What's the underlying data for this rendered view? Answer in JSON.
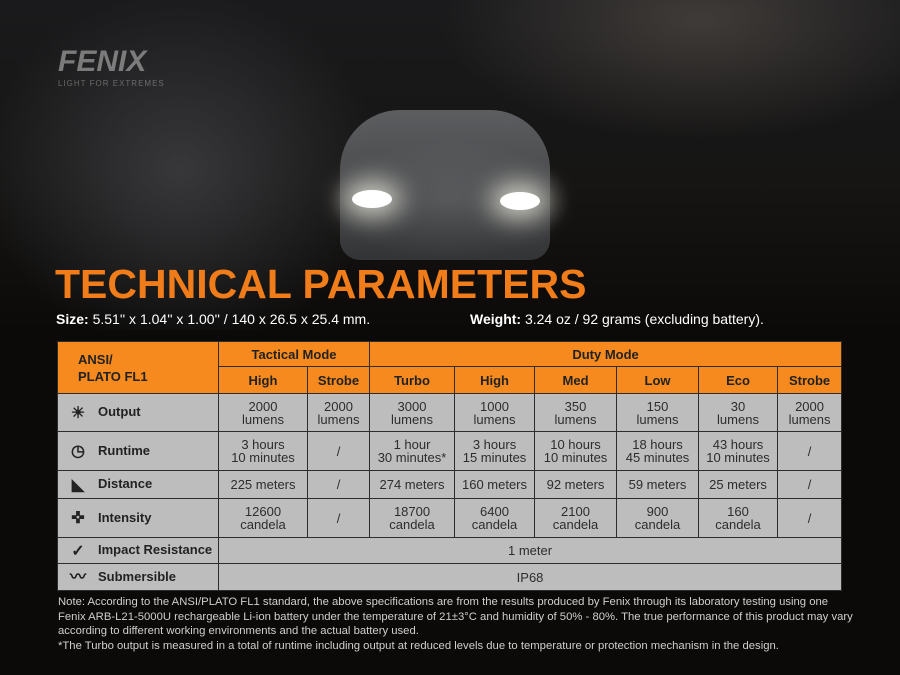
{
  "brand": {
    "logo": "FENIX",
    "tagline": "LIGHT FOR EXTREMES"
  },
  "title": "TECHNICAL PARAMETERS",
  "size": {
    "label": "Size:",
    "value": "5.51'' x 1.04'' x 1.00'' / 140 x 26.5 x 25.4 mm."
  },
  "weight": {
    "label": "Weight:",
    "value": "3.24 oz / 92 grams (excluding battery)."
  },
  "table": {
    "corner": [
      "ANSI/",
      "PLATO  FL1"
    ],
    "groups": [
      "Tactical Mode",
      "Duty Mode"
    ],
    "modes": [
      "High",
      "Strobe",
      "Turbo",
      "High",
      "Med",
      "Low",
      "Eco",
      "Strobe"
    ],
    "rows": [
      {
        "label": "Output",
        "icon": "output-icon",
        "cells": [
          [
            "2000",
            "lumens"
          ],
          [
            "2000",
            "lumens"
          ],
          [
            "3000",
            "lumens"
          ],
          [
            "1000",
            "lumens"
          ],
          [
            "350",
            "lumens"
          ],
          [
            "150",
            "lumens"
          ],
          [
            "30",
            "lumens"
          ],
          [
            "2000",
            "lumens"
          ]
        ]
      },
      {
        "label": "Runtime",
        "icon": "clock-icon",
        "cells": [
          [
            "3 hours",
            "10 minutes"
          ],
          [
            "/"
          ],
          [
            "1 hour",
            "30 minutes*"
          ],
          [
            "3 hours",
            "15 minutes"
          ],
          [
            "10 hours",
            "10 minutes"
          ],
          [
            "18 hours",
            "45 minutes"
          ],
          [
            "43 hours",
            "10 minutes"
          ],
          [
            "/"
          ]
        ]
      },
      {
        "label": "Distance",
        "icon": "distance-icon",
        "cells": [
          [
            "225 meters"
          ],
          [
            "/"
          ],
          [
            "274 meters"
          ],
          [
            "160 meters"
          ],
          [
            "92 meters"
          ],
          [
            "59 meters"
          ],
          [
            "25 meters"
          ],
          [
            "/"
          ]
        ]
      },
      {
        "label": "Intensity",
        "icon": "intensity-icon",
        "cells": [
          [
            "12600",
            "candela"
          ],
          [
            "/"
          ],
          [
            "18700",
            "candela"
          ],
          [
            "6400",
            "candela"
          ],
          [
            "2100",
            "candela"
          ],
          [
            "900",
            "candela"
          ],
          [
            "160",
            "candela"
          ],
          [
            "/"
          ]
        ]
      }
    ],
    "impact": {
      "label": "Impact Resistance",
      "value": "1 meter"
    },
    "submersible": {
      "label": "Submersible",
      "value": "IP68"
    }
  },
  "note": "Note: According to the ANSI/PLATO FL1 standard, the above specifications are from the results produced by Fenix through its laboratory testing using one Fenix ARB-L21-5000U rechargeable Li-ion battery under the temperature of 21±3°C and humidity of 50% - 80%. The true performance of this product may vary according to different working environments and the actual battery used.",
  "footnote": "*The Turbo output is measured in a total of runtime including output at reduced levels due to temperature or protection mechanism in the design.",
  "colors": {
    "accent": "#f68a1e",
    "title": "#f07c1a",
    "cell": "#bdbdbd"
  }
}
